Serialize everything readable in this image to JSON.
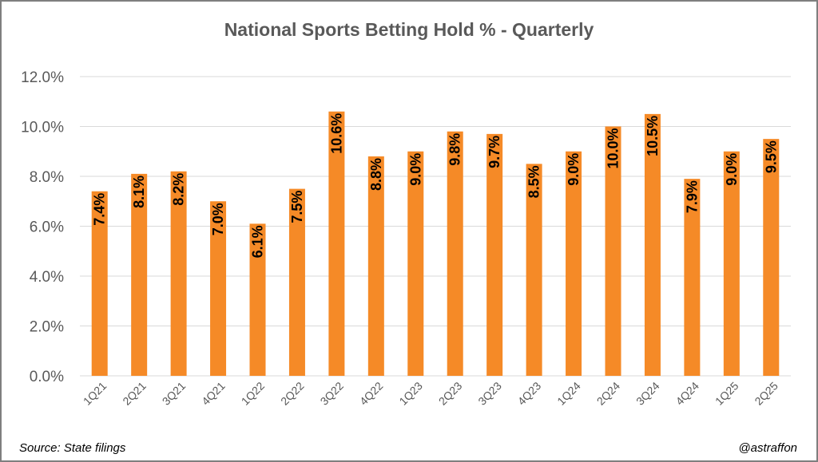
{
  "chart_data": {
    "type": "bar",
    "title": "National Sports Betting Hold % - Quarterly",
    "xlabel": "",
    "ylabel": "",
    "categories": [
      "1Q21",
      "2Q21",
      "3Q21",
      "4Q21",
      "1Q22",
      "2Q22",
      "3Q22",
      "4Q22",
      "1Q23",
      "2Q23",
      "3Q23",
      "4Q23",
      "1Q24",
      "2Q24",
      "3Q24",
      "4Q24",
      "1Q25",
      "2Q25"
    ],
    "values": [
      7.4,
      8.1,
      8.2,
      7.0,
      6.1,
      7.5,
      10.6,
      8.8,
      9.0,
      9.8,
      9.7,
      8.5,
      9.0,
      10.0,
      10.5,
      7.9,
      9.0,
      9.5
    ],
    "data_labels": [
      "7.4%",
      "8.1%",
      "8.2%",
      "7.0%",
      "6.1%",
      "7.5%",
      "10.6%",
      "8.8%",
      "9.0%",
      "9.8%",
      "9.7%",
      "8.5%",
      "9.0%",
      "10.0%",
      "10.5%",
      "7.9%",
      "9.0%",
      "9.5%"
    ],
    "ylim": [
      0,
      12
    ],
    "yticks": [
      0,
      2,
      4,
      6,
      8,
      10,
      12
    ],
    "ytick_labels": [
      "0.0%",
      "2.0%",
      "4.0%",
      "6.0%",
      "8.0%",
      "10.0%",
      "12.0%"
    ],
    "grid": true,
    "legend": "none",
    "bar_color": "#f58a27",
    "grid_color": "#d9d9d9",
    "axis_text_color": "#595959"
  },
  "footer": {
    "source": "Source: State filings",
    "credit": "@astraffon"
  }
}
